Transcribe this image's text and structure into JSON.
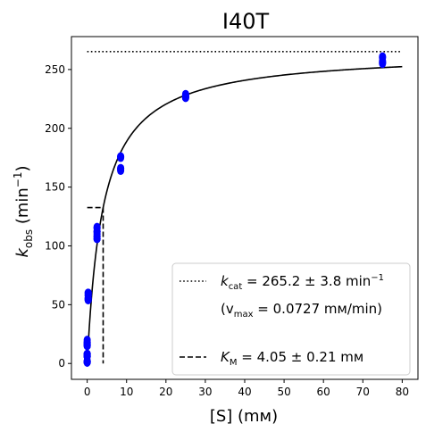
{
  "chart_data": {
    "type": "scatter",
    "title": "I40T",
    "xlabel": "[S] (mм)",
    "ylabel": {
      "main": "k",
      "sub": "obs",
      "unit_pre": " (min",
      "unit_sup": "−1",
      "unit_post": ")"
    },
    "xlim": [
      -4,
      84
    ],
    "ylim": [
      -13.5,
      278
    ],
    "xticks": [
      0,
      10,
      20,
      30,
      40,
      50,
      60,
      70,
      80
    ],
    "yticks": [
      0,
      50,
      100,
      150,
      200,
      250
    ],
    "grid": false,
    "legend_position": "bottom-right",
    "series": [
      {
        "kind": "points",
        "color": "#0000ff",
        "x": [
          0,
          0,
          0,
          0,
          0,
          0,
          0,
          0,
          0,
          0,
          0,
          0,
          0,
          0,
          0,
          0,
          0,
          0,
          0,
          0,
          0,
          0,
          0,
          0,
          0,
          0.25,
          0.25,
          0.25,
          0.25,
          0.25,
          0.25,
          0.25,
          0.25,
          0.25,
          2.5,
          2.5,
          2.5,
          2.5,
          2.5,
          2.5,
          2.5,
          2.5,
          2.5,
          8.5,
          8.5,
          8.5,
          8.5,
          8.5,
          8.5,
          8.5,
          25,
          25,
          25,
          25,
          25,
          25,
          75,
          75,
          75,
          75,
          75,
          75
        ],
        "y": [
          1,
          1,
          1,
          1,
          1,
          2,
          2,
          2,
          6,
          6,
          6,
          6,
          7,
          7,
          8,
          8,
          8,
          15,
          15,
          16,
          16,
          17,
          18,
          18,
          20,
          54,
          54,
          55,
          55,
          56,
          58,
          58,
          60,
          60,
          106,
          106,
          108,
          108,
          110,
          112,
          112,
          115,
          116,
          164,
          165,
          166,
          166,
          175,
          176,
          176,
          226,
          226,
          227,
          227,
          228,
          229,
          255,
          256,
          256,
          257,
          260,
          261
        ]
      },
      {
        "kind": "fit",
        "color": "#000000",
        "equation": "v = kcat*S/(KM+S)",
        "kcat": 265.2,
        "KM": 4.05,
        "x_range": [
          0,
          80
        ]
      },
      {
        "kind": "kcat-line",
        "color": "#000000",
        "y": 265.2,
        "x_range": [
          0,
          80
        ]
      },
      {
        "kind": "KM-line",
        "color": "#000000",
        "x": 4.05,
        "y": 132.6
      }
    ],
    "legend": [
      {
        "style": "dotted",
        "main": "k",
        "sub": "cat",
        "text": " = 265.2 ± 3.8 min",
        "sup": "−1"
      },
      {
        "style": "none",
        "pre": "(v",
        "sub": "max",
        "text": " = 0.0727 mм/min)"
      },
      {
        "style": "dashed",
        "main": "K",
        "sub": "M",
        "text": " = 4.05 ± 0.21 mм"
      }
    ]
  }
}
